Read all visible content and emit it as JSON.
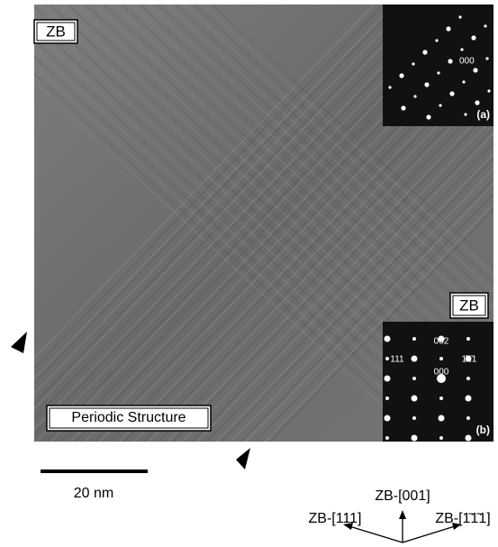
{
  "micrograph": {
    "label": "ZB",
    "region_label": "Periodic Structure",
    "inset_a": {
      "spot_label": "000",
      "panel_label": "(a)"
    },
    "inset_b": {
      "label": "ZB",
      "spots": [
        "002",
        "111",
        "1̄1̄1",
        "000"
      ],
      "panel_label": "(b)"
    }
  },
  "scale_bar": {
    "label": "20 nm"
  },
  "directions": {
    "up": "ZB-[001]",
    "left": "ZB-[111]",
    "right": "ZB-[1̄1̄1]"
  }
}
